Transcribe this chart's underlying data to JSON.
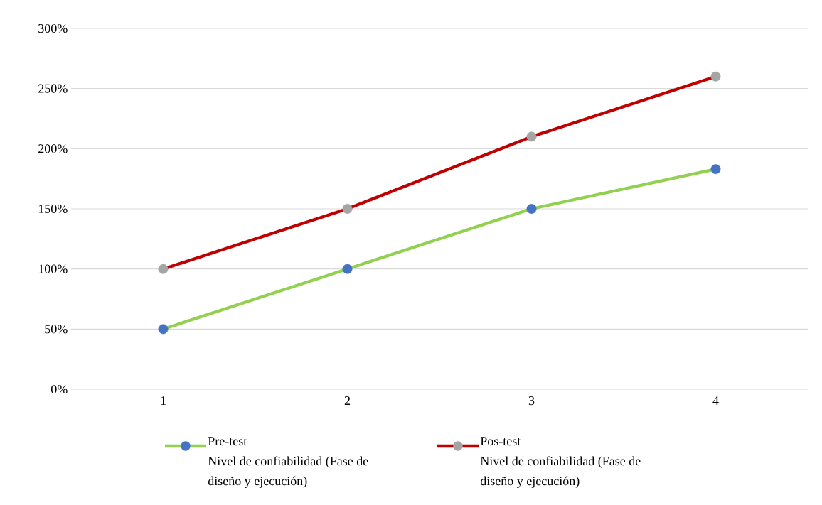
{
  "chart_data": {
    "type": "line",
    "categories": [
      "1",
      "2",
      "3",
      "4"
    ],
    "series": [
      {
        "name": "Pre-test Nivel de confiabilidad (Fase de diseño y ejecución)",
        "color": "#92d050",
        "colors": [
          "#4472c4",
          "#4472c4",
          "#4472c4",
          "#4472c4"
        ],
        "values": [
          50,
          100,
          150,
          183
        ]
      },
      {
        "name": "Pos-test Nivel de confiabilidad (Fase de diseño y ejecución)",
        "color": "#c00000",
        "colors": [
          "#a5a5a5",
          "#a5a5a5",
          "#a5a5a5",
          "#a5a5a5"
        ],
        "values": [
          100,
          150,
          210,
          260
        ]
      }
    ],
    "ylim": [
      0,
      300
    ],
    "yticks": [
      {
        "value": 0,
        "label": "0%"
      },
      {
        "value": 50,
        "label": "50%"
      },
      {
        "value": 100,
        "label": "100%"
      },
      {
        "value": 150,
        "label": "150%"
      },
      {
        "value": 200,
        "label": "200%"
      },
      {
        "value": 250,
        "label": "250%"
      },
      {
        "value": 300,
        "label": "300%"
      }
    ],
    "grid": "y",
    "legend": "bottom",
    "marker": "circle",
    "line_style": "solid"
  }
}
